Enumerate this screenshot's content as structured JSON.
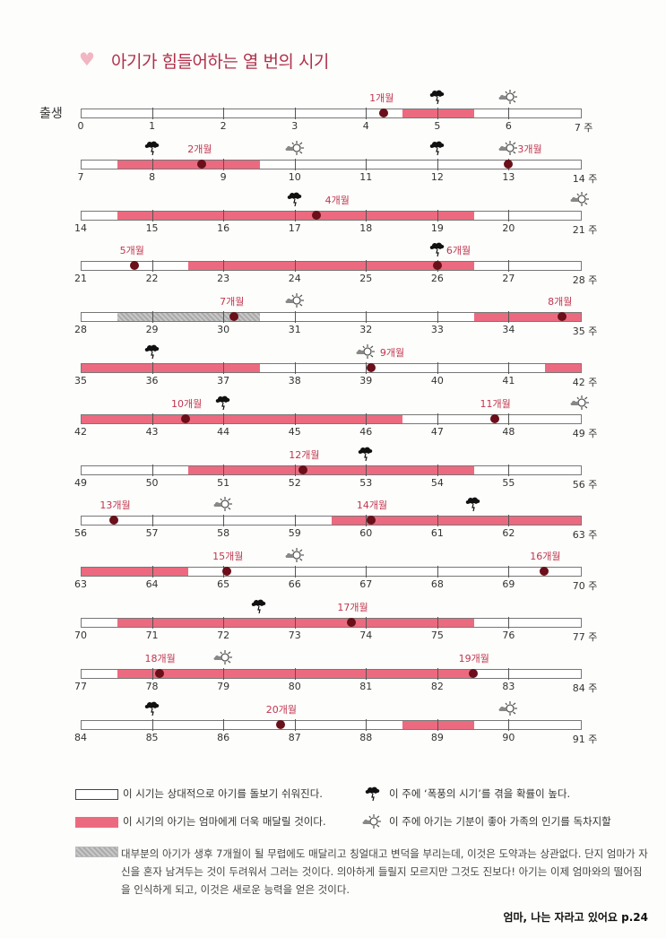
{
  "title": "아기가 힘들어하는 열 번의 시기",
  "title_icon": "heart-icon",
  "birth_label": "출생",
  "week_unit": "주",
  "colors": {
    "pink": "#ec6a7f",
    "dot": "#6b0f1a",
    "label": "#c0364f",
    "gray": "#b5b5b5"
  },
  "rows": [
    {
      "start": 0,
      "pink": [
        [
          4.5,
          5.5
        ]
      ],
      "gray": [],
      "dots": [
        {
          "week": 4.25,
          "label": "1개월"
        }
      ],
      "storm": [
        5
      ],
      "sun": [
        6
      ]
    },
    {
      "start": 7,
      "pink": [
        [
          7.5,
          9.5
        ]
      ],
      "gray": [],
      "dots": [
        {
          "week": 8.7,
          "label": "2개월"
        },
        {
          "week": 13,
          "label": "3개월"
        }
      ],
      "storm": [
        8,
        12
      ],
      "sun": [
        10,
        13
      ]
    },
    {
      "start": 14,
      "pink": [
        [
          14.5,
          19.5
        ]
      ],
      "gray": [],
      "dots": [
        {
          "week": 17.3,
          "label": "4개월"
        }
      ],
      "storm": [
        17
      ],
      "sun": [
        21
      ]
    },
    {
      "start": 21,
      "pink": [
        [
          22.5,
          26.5
        ]
      ],
      "gray": [],
      "dots": [
        {
          "week": 21.75,
          "label": "5개월"
        },
        {
          "week": 26,
          "label": "6개월"
        }
      ],
      "storm": [
        26
      ],
      "sun": []
    },
    {
      "start": 28,
      "pink": [
        [
          33.5,
          35
        ]
      ],
      "gray": [
        [
          28.5,
          30.5
        ]
      ],
      "dots": [
        {
          "week": 30.15,
          "label": "7개월"
        },
        {
          "week": 34.75,
          "label": "8개월"
        }
      ],
      "storm": [],
      "sun": [
        31
      ]
    },
    {
      "start": 35,
      "pink": [
        [
          35,
          37.5
        ],
        [
          41.5,
          42
        ]
      ],
      "gray": [],
      "dots": [
        {
          "week": 39.07,
          "label": "9개월"
        }
      ],
      "storm": [
        36
      ],
      "sun": [
        39
      ]
    },
    {
      "start": 42,
      "pink": [
        [
          42,
          46.5
        ]
      ],
      "gray": [],
      "dots": [
        {
          "week": 43.47,
          "label": "10개월"
        },
        {
          "week": 47.8,
          "label": "11개월"
        }
      ],
      "storm": [
        44
      ],
      "sun": [
        49
      ]
    },
    {
      "start": 49,
      "pink": [
        [
          50.5,
          54.5
        ]
      ],
      "gray": [],
      "dots": [
        {
          "week": 52.12,
          "label": "12개월"
        }
      ],
      "storm": [
        53
      ],
      "sun": []
    },
    {
      "start": 56,
      "pink": [
        [
          59.5,
          63
        ]
      ],
      "gray": [],
      "dots": [
        {
          "week": 56.47,
          "label": "13개월"
        },
        {
          "week": 60.07,
          "label": "14개월"
        }
      ],
      "storm": [
        61.5
      ],
      "sun": [
        58
      ]
    },
    {
      "start": 63,
      "pink": [
        [
          63,
          64.5
        ]
      ],
      "gray": [],
      "dots": [
        {
          "week": 65.05,
          "label": "15개월"
        },
        {
          "week": 69.5,
          "label": "16개월"
        }
      ],
      "storm": [],
      "sun": [
        66
      ]
    },
    {
      "start": 70,
      "pink": [
        [
          70.5,
          75.5
        ]
      ],
      "gray": [],
      "dots": [
        {
          "week": 73.8,
          "label": "17개월"
        }
      ],
      "storm": [
        72.5
      ],
      "sun": []
    },
    {
      "start": 77,
      "pink": [
        [
          77.5,
          82.5
        ]
      ],
      "gray": [],
      "dots": [
        {
          "week": 78.1,
          "label": "18개월"
        },
        {
          "week": 82.5,
          "label": "19개월"
        }
      ],
      "storm": [],
      "sun": [
        79
      ]
    },
    {
      "start": 84,
      "pink": [
        [
          88.5,
          89.5
        ]
      ],
      "gray": [],
      "dots": [
        {
          "week": 86.8,
          "label": "20개월"
        }
      ],
      "storm": [
        85
      ],
      "sun": [
        90
      ]
    }
  ],
  "legend": {
    "white": "이 시기는 상대적으로 아기를 돌보기 쉬워진다.",
    "pink": "이 시기의 아기는 엄마에게 더욱 매달릴 것이다.",
    "storm": "이 주에 ‘폭풍의 시기’를 겪을 확률이 높다.",
    "sun": "이 주에 아기는 기분이 좋아 가족의 인기를 독차지할",
    "gray": "대부분의 아기가 생후 7개월이 될 무렵에도 매달리고 칭얼대고 변덕을 부리는데, 이것은 도약과는 상관없다. 단지 엄마가 자신을 혼자 남겨두는 것이 두려워서 그러는 것이다. 의아하게 들릴지 모르지만 그것도 진보다! 아기는 이제 엄마와의 떨어짐을 인식하게 되고, 이것은 새로운 능력을 얻은 것이다."
  },
  "footer": "엄마, 나는 자라고 있어요 p.24"
}
